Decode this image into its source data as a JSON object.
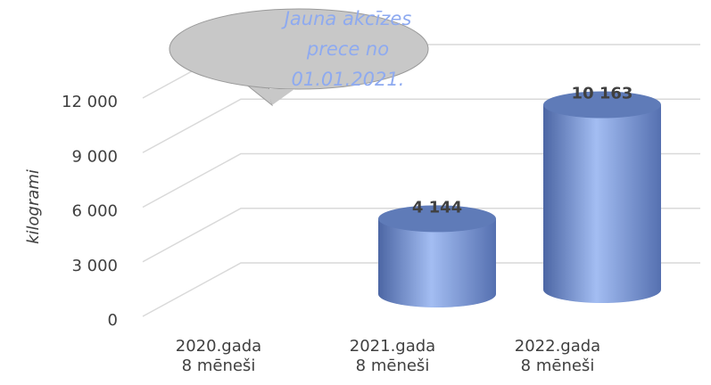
{
  "chart_data": {
    "type": "cylinder",
    "categories": [
      "2020.gada\n8 mēneši",
      "2021.gada\n8 mēneši",
      "2022.gada\n8 mēneši"
    ],
    "values": [
      null,
      4144,
      10163
    ],
    "value_labels": [
      null,
      "4 144",
      "10 163"
    ],
    "color": "#7f9ad8",
    "y_label": "kilogrami",
    "annotation": "Jauna akcīzes prece no 01.01.2021.",
    "ylim": [
      0,
      12000
    ],
    "yticks": [
      0,
      {
        "value": 3000,
        "label": "3 000"
      },
      {
        "value": 6000,
        "label": "6 000"
      },
      {
        "value": 9000,
        "label": "9 000"
      },
      {
        "value": 12000,
        "label": "12 000"
      }
    ],
    "grid": true
  }
}
